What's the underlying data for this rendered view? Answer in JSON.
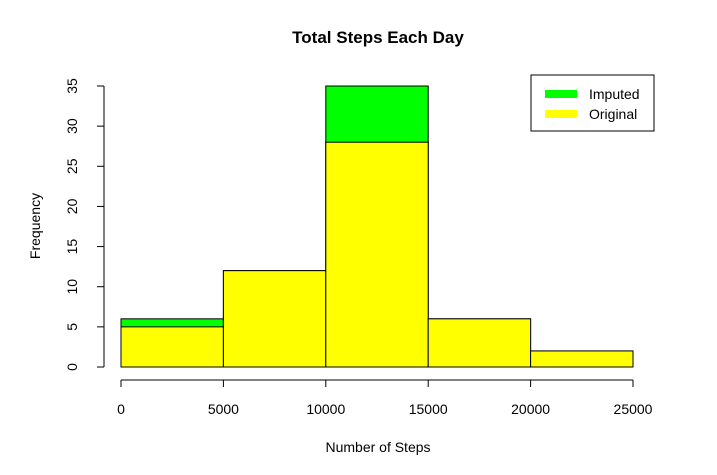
{
  "chart_data": {
    "type": "bar",
    "title": "Total Steps Each Day",
    "xlabel": "Number of Steps",
    "ylabel": "Frequency",
    "bins": [
      [
        0,
        5000
      ],
      [
        5000,
        10000
      ],
      [
        10000,
        15000
      ],
      [
        15000,
        20000
      ],
      [
        20000,
        25000
      ]
    ],
    "series": [
      {
        "name": "Imputed",
        "color": "#00ff00",
        "values": [
          6,
          12,
          35,
          6,
          2
        ]
      },
      {
        "name": "Original",
        "color": "#ffff00",
        "values": [
          5,
          12,
          28,
          6,
          2
        ]
      }
    ],
    "xlim": [
      0,
      25000
    ],
    "ylim": [
      0,
      35
    ],
    "xticks": [
      "0",
      "5000",
      "10000",
      "15000",
      "20000",
      "25000"
    ],
    "yticks": [
      "0",
      "5",
      "10",
      "15",
      "20",
      "25",
      "30",
      "35"
    ],
    "legend_position": "top-right",
    "grid": false
  }
}
